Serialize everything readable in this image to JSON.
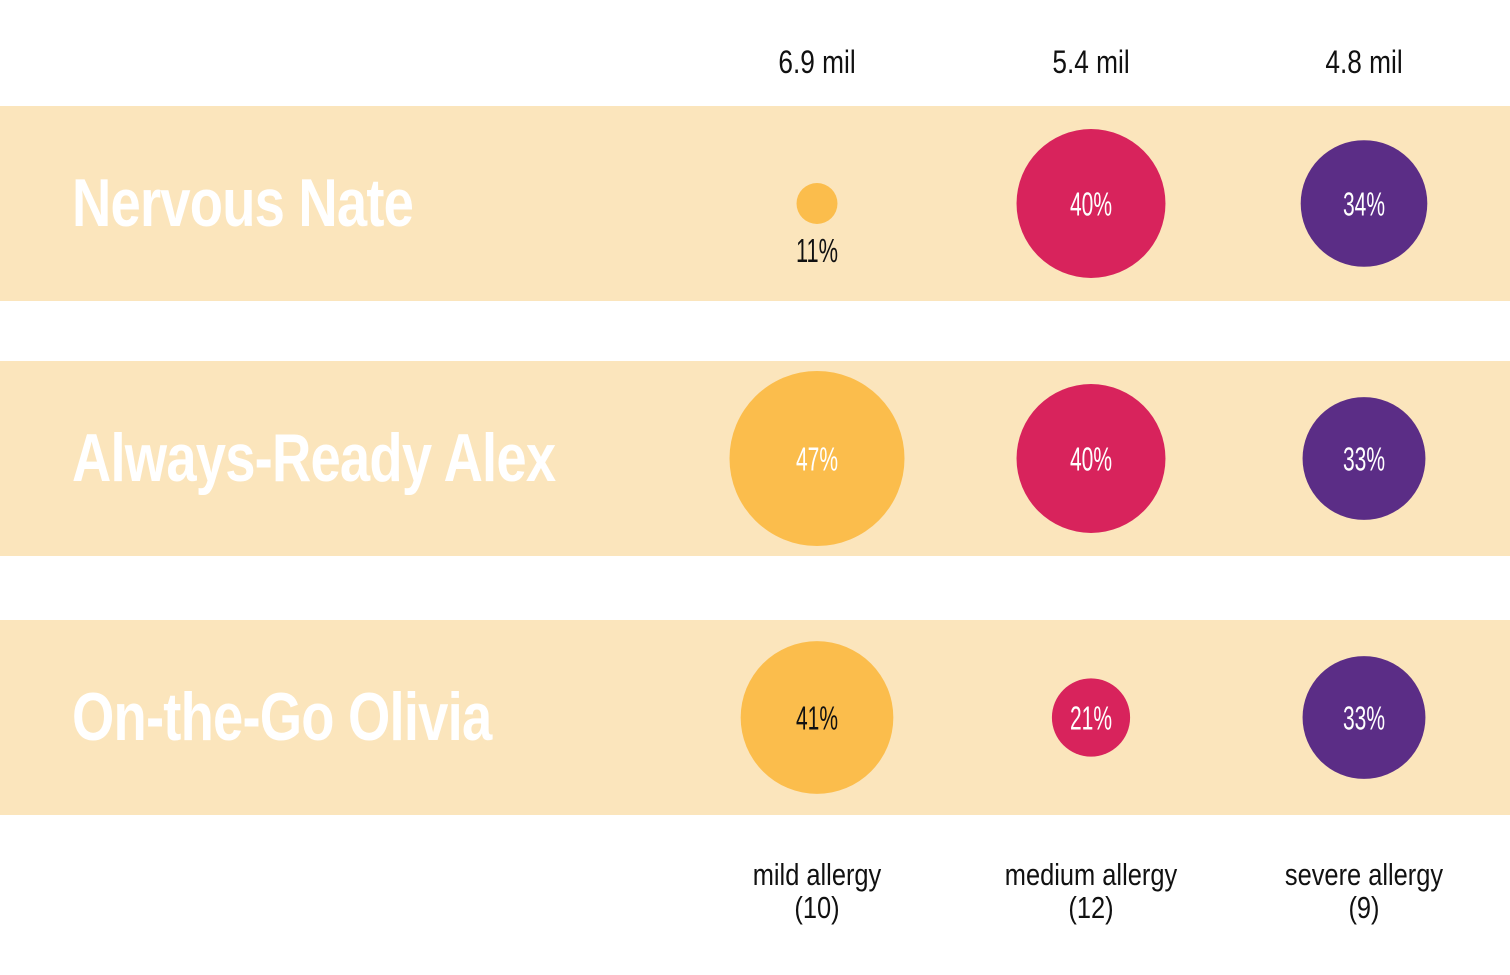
{
  "colors": {
    "band": "#fbe5bc",
    "background": "#ffffff",
    "mild": "#fbbd4c",
    "medium": "#d8235c",
    "severe": "#5b2d86",
    "label_on_light": "#111111",
    "label_on_dark": "#ffffff",
    "row_label": "#ffffff"
  },
  "chart_data": {
    "type": "bubble",
    "rows": [
      "Nervous Nate",
      "Always-Ready Alex",
      "On-the-Go Olivia"
    ],
    "columns": [
      {
        "label": "mild allergy",
        "count": "(10)",
        "total": "6.9 mil"
      },
      {
        "label": "medium allergy",
        "count": "(12)",
        "total": "5.4 mil"
      },
      {
        "label": "severe allergy",
        "count": "(9)",
        "total": "4.8 mil"
      }
    ],
    "values": [
      [
        11,
        40,
        34
      ],
      [
        47,
        40,
        33
      ],
      [
        41,
        21,
        33
      ]
    ],
    "value_labels": [
      [
        "11%",
        "40%",
        "34%"
      ],
      [
        "47%",
        "40%",
        "33%"
      ],
      [
        "41%",
        "21%",
        "33%"
      ]
    ]
  }
}
